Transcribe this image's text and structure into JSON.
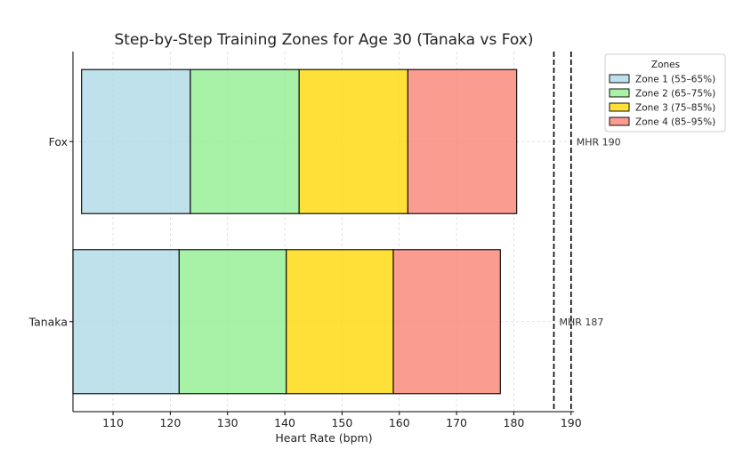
{
  "chart_data": {
    "type": "bar",
    "orientation": "horizontal",
    "stacked": true,
    "title": "Step-by-Step Training Zones for Age 30 (Tanaka vs Fox)",
    "xlabel": "Heart Rate (bpm)",
    "ylabel": "",
    "xlim": [
      103,
      190.5
    ],
    "xticks": [
      110,
      120,
      130,
      140,
      150,
      160,
      170,
      180,
      190
    ],
    "grid": true,
    "categories": [
      "Tanaka",
      "Fox"
    ],
    "series": [
      {
        "name": "Zone 1 (55–65%)",
        "color": "#add8e6",
        "ranges": [
          [
            102.85,
            121.55
          ],
          [
            104.5,
            123.5
          ]
        ]
      },
      {
        "name": "Zone 2 (65–75%)",
        "color": "#90ee90",
        "ranges": [
          [
            121.55,
            140.25
          ],
          [
            123.5,
            142.5
          ]
        ]
      },
      {
        "name": "Zone 3 (75–85%)",
        "color": "#ffd700",
        "ranges": [
          [
            140.25,
            158.95
          ],
          [
            142.5,
            161.5
          ]
        ]
      },
      {
        "name": "Zone 4 (85–95%)",
        "color": "#fa8072",
        "ranges": [
          [
            158.95,
            177.65
          ],
          [
            161.5,
            180.5
          ]
        ]
      }
    ],
    "legend": {
      "title": "Zones",
      "position": "outside top-right"
    },
    "reference_lines": [
      {
        "label": "MHR 187",
        "x": 187,
        "category": "Tanaka"
      },
      {
        "label": "MHR 190",
        "x": 190,
        "category": "Fox"
      }
    ]
  }
}
